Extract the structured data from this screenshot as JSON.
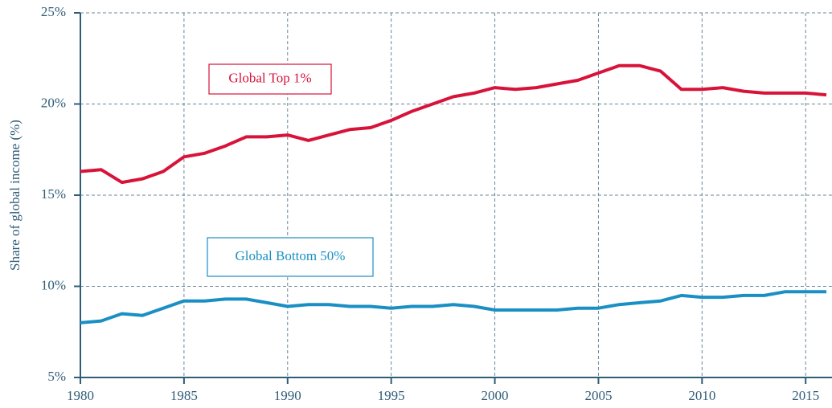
{
  "chart_data": {
    "type": "line",
    "y_label": "Share of global income (%)",
    "x": [
      1980,
      1981,
      1982,
      1983,
      1984,
      1985,
      1986,
      1987,
      1988,
      1989,
      1990,
      1991,
      1992,
      1993,
      1994,
      1995,
      1996,
      1997,
      1998,
      1999,
      2000,
      2001,
      2002,
      2003,
      2004,
      2005,
      2006,
      2007,
      2008,
      2009,
      2010,
      2011,
      2012,
      2013,
      2014,
      2015,
      2016
    ],
    "series": [
      {
        "name": "Global Top 1%",
        "color": "#d8133a",
        "values": [
          16.3,
          16.4,
          15.7,
          15.9,
          16.3,
          17.1,
          17.3,
          17.7,
          18.2,
          18.2,
          18.3,
          18.0,
          18.3,
          18.6,
          18.7,
          19.1,
          19.6,
          20.0,
          20.4,
          20.6,
          20.9,
          20.8,
          20.9,
          21.1,
          21.3,
          21.7,
          22.1,
          22.1,
          21.8,
          20.8,
          20.8,
          20.9,
          20.7,
          20.6,
          20.6,
          20.6,
          20.5
        ]
      },
      {
        "name": "Global Bottom 50%",
        "color": "#1a8fc4",
        "values": [
          8.0,
          8.1,
          8.5,
          8.4,
          8.8,
          9.2,
          9.2,
          9.3,
          9.3,
          9.1,
          8.9,
          9.0,
          9.0,
          8.9,
          8.9,
          8.8,
          8.9,
          8.9,
          9.0,
          8.9,
          8.7,
          8.7,
          8.7,
          8.7,
          8.8,
          8.8,
          9.0,
          9.1,
          9.2,
          9.5,
          9.4,
          9.4,
          9.5,
          9.5,
          9.7,
          9.7,
          9.7
        ]
      }
    ],
    "xlim": [
      1980,
      2016
    ],
    "xticks": [
      1980,
      1985,
      1990,
      1995,
      2000,
      2005,
      2010,
      2015
    ],
    "ylim": [
      5,
      25
    ],
    "yticks": [
      {
        "value": 5,
        "label": "5%"
      },
      {
        "value": 10,
        "label": "10%"
      },
      {
        "value": 15,
        "label": "15%"
      },
      {
        "value": 20,
        "label": "20%"
      },
      {
        "value": 25,
        "label": "25%"
      }
    ],
    "grid": true
  }
}
